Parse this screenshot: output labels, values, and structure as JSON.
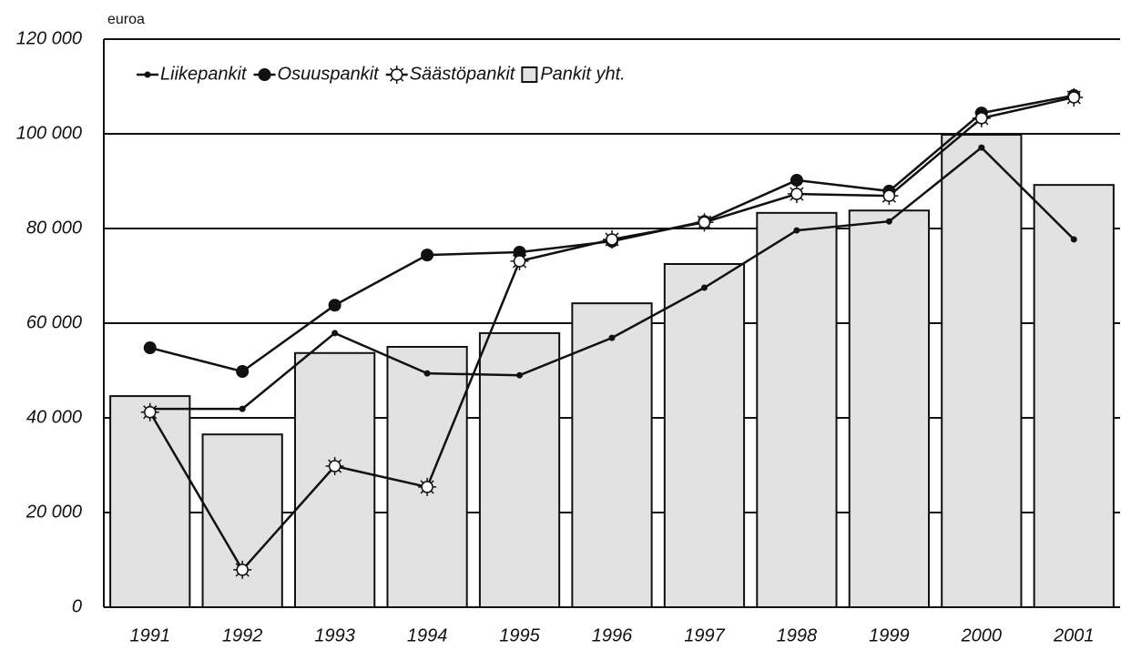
{
  "chart_data": {
    "type": "bar+line",
    "y_axis_label": "euroa",
    "categories": [
      "1991",
      "1992",
      "1993",
      "1994",
      "1995",
      "1996",
      "1997",
      "1998",
      "1999",
      "2000",
      "2001"
    ],
    "series": [
      {
        "name": "Liikepankit",
        "type": "line",
        "marker": "dot",
        "color": "#111111",
        "values": [
          41900,
          41900,
          57900,
          49400,
          49000,
          56900,
          67500,
          79600,
          81500,
          97100,
          77700
        ]
      },
      {
        "name": "Osuuspankit",
        "type": "line",
        "marker": "circle",
        "color": "#111111",
        "values": [
          54800,
          49800,
          63800,
          74400,
          75000,
          77300,
          81500,
          90200,
          87900,
          104400,
          108100
        ]
      },
      {
        "name": "Säästöpankit",
        "type": "line",
        "marker": "star",
        "color": "#111111",
        "values": [
          41200,
          7900,
          29800,
          25400,
          73100,
          77700,
          81300,
          87300,
          86900,
          103300,
          107700
        ]
      },
      {
        "name": "Pankit yht.",
        "type": "bar",
        "color": "#e2e2e2",
        "values": [
          44600,
          36500,
          53700,
          55000,
          57900,
          64200,
          72500,
          83300,
          83800,
          99800,
          89200
        ]
      }
    ],
    "ylim": [
      0,
      120000
    ],
    "yticks": [
      0,
      {
        "value": 20000,
        "label": "20 000"
      },
      {
        "value": 40000,
        "label": "40 000"
      },
      {
        "value": 60000,
        "label": "60 000"
      },
      {
        "value": 80000,
        "label": "80 000"
      },
      {
        "value": 100000,
        "label": "100 000"
      },
      {
        "value": 120000,
        "label": "120 000"
      }
    ],
    "grid": true,
    "legend": "top-left"
  }
}
